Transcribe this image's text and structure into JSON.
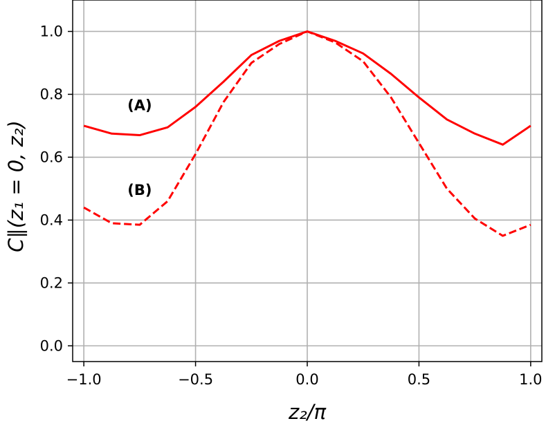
{
  "chart_data": {
    "type": "line",
    "title": "",
    "xlabel": "z₂/π",
    "ylabel": "C∥(z₁ = 0, z₂)",
    "xlim": [
      -1.05,
      1.05
    ],
    "ylim": [
      -0.05,
      1.1
    ],
    "xticks": [
      -1.0,
      -0.5,
      0.0,
      0.5,
      1.0
    ],
    "xtick_labels": [
      "−1.0",
      "−0.5",
      "0.0",
      "0.5",
      "1.0"
    ],
    "yticks": [
      0.0,
      0.2,
      0.4,
      0.6,
      0.8,
      1.0
    ],
    "ytick_labels": [
      "0.0",
      "0.2",
      "0.4",
      "0.6",
      "0.8",
      "1.0"
    ],
    "grid": true,
    "x": [
      -1.0,
      -0.875,
      -0.75,
      -0.625,
      -0.5,
      -0.375,
      -0.25,
      -0.125,
      0.0,
      0.125,
      0.25,
      0.375,
      0.5,
      0.625,
      0.75,
      0.875,
      1.0
    ],
    "series": [
      {
        "label": "(A)",
        "style": "solid",
        "color": "#ff0000",
        "values": [
          0.7,
          0.675,
          0.67,
          0.695,
          0.76,
          0.84,
          0.925,
          0.97,
          1.0,
          0.97,
          0.93,
          0.865,
          0.79,
          0.72,
          0.675,
          0.64,
          0.7
        ]
      },
      {
        "label": "(B)",
        "style": "dashed",
        "color": "#ff0000",
        "values": [
          0.44,
          0.39,
          0.385,
          0.46,
          0.61,
          0.775,
          0.9,
          0.96,
          1.0,
          0.965,
          0.905,
          0.79,
          0.645,
          0.5,
          0.405,
          0.35,
          0.385
        ]
      }
    ],
    "annotations": [
      {
        "text": "(A)",
        "x": -0.75,
        "y": 0.765
      },
      {
        "text": "(B)",
        "x": -0.75,
        "y": 0.495
      }
    ]
  }
}
